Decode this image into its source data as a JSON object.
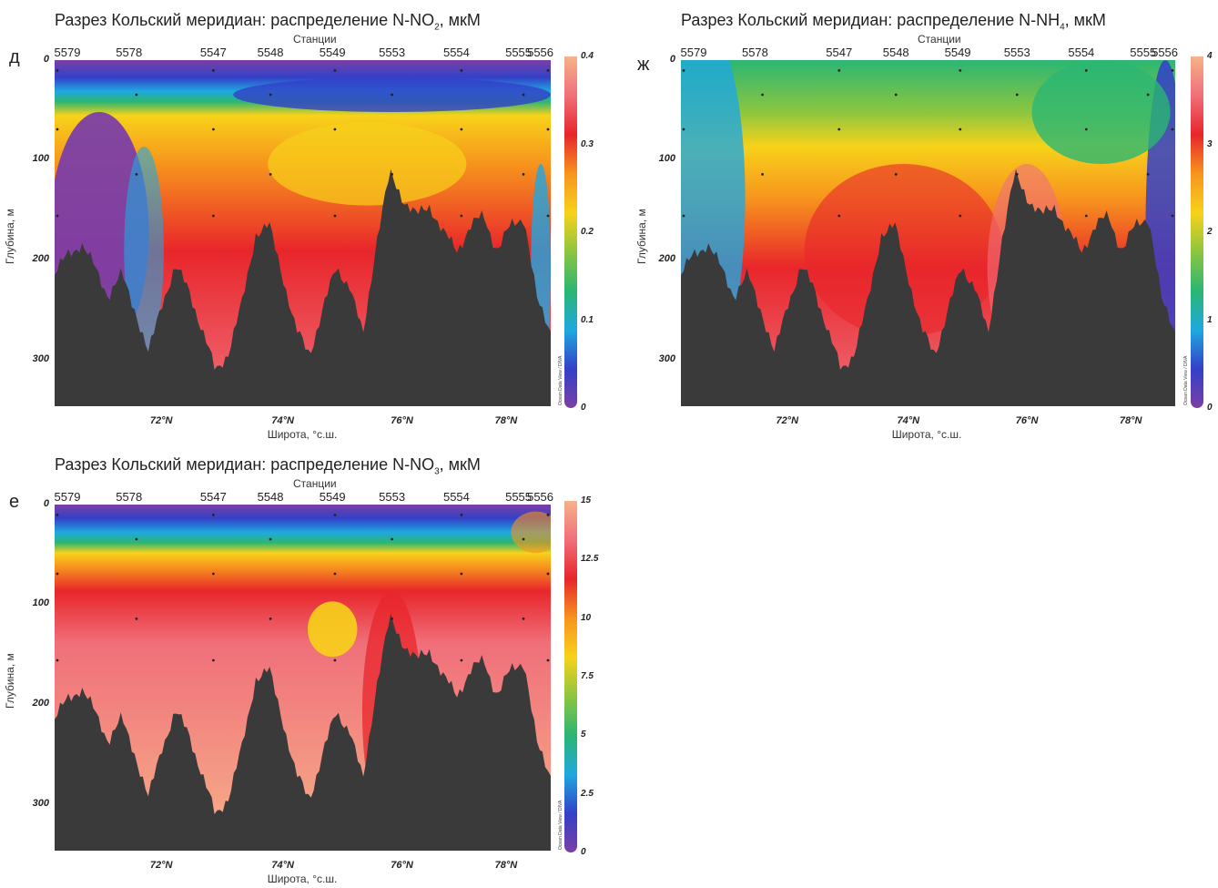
{
  "chart_data": [
    {
      "type": "heatmap",
      "letter": "д",
      "title": "Разрез Кольский меридиан: распределение N-NO",
      "title_sub": "2",
      "title_unit": ", мкМ",
      "top_axis_label": "Станции",
      "stations": [
        "5579",
        "5578",
        "5547",
        "5548",
        "5549",
        "5553",
        "5554",
        "5555",
        "5556"
      ],
      "ylabel": "Глубина, м",
      "xlabel": "Широта, °с.ш.",
      "yticks": [
        "0",
        "100",
        "200",
        "300"
      ],
      "xticks": [
        "72°N",
        "74°N",
        "76°N",
        "78°N"
      ],
      "colorbar_ticks": [
        "0.4",
        "0.3",
        "0.2",
        "0.1",
        "0"
      ],
      "colorbar_range": [
        0,
        0.4
      ],
      "watermark": "Ocean Data View / DIVA"
    },
    {
      "type": "heatmap",
      "letter": "ж",
      "title": "Разрез Кольский меридиан: распределение N-NH",
      "title_sub": "4",
      "title_unit": ", мкМ",
      "top_axis_label": "Станции",
      "stations": [
        "5579",
        "5578",
        "5547",
        "5548",
        "5549",
        "5553",
        "5554",
        "5555",
        "5556"
      ],
      "ylabel": "Глубина, м",
      "xlabel": "Широта, °с.ш.",
      "yticks": [
        "0",
        "100",
        "200",
        "300"
      ],
      "xticks": [
        "72°N",
        "74°N",
        "76°N",
        "78°N"
      ],
      "colorbar_ticks": [
        "4",
        "3",
        "2",
        "1",
        "0"
      ],
      "colorbar_range": [
        0,
        4
      ],
      "watermark": "Ocean Data View / DIVA"
    },
    {
      "type": "heatmap",
      "letter": "е",
      "title": "Разрез Кольский меридиан: распределение N-NO",
      "title_sub": "3",
      "title_unit": ", мкМ",
      "top_axis_label": "Станции",
      "stations": [
        "5579",
        "5578",
        "5547",
        "5548",
        "5549",
        "5553",
        "5554",
        "5555",
        "5556"
      ],
      "ylabel": "Глубина, м",
      "xlabel": "Широта, °с.ш.",
      "yticks": [
        "0",
        "100",
        "200",
        "300"
      ],
      "xticks": [
        "72°N",
        "74°N",
        "76°N",
        "78°N"
      ],
      "colorbar_ticks": [
        "15",
        "12.5",
        "10",
        "7.5",
        "5",
        "2.5",
        "0"
      ],
      "colorbar_range": [
        0,
        15
      ],
      "watermark": "Ocean Data View / DIVA"
    }
  ],
  "colors": {
    "bathymetry": "#3a3a3a",
    "colormap": [
      "#7b3fa6",
      "#3340c8",
      "#1fa8e0",
      "#2bb673",
      "#8cc63f",
      "#f7d21a",
      "#f7941d",
      "#e8262b",
      "#f06f7a",
      "#f7b28a"
    ]
  }
}
